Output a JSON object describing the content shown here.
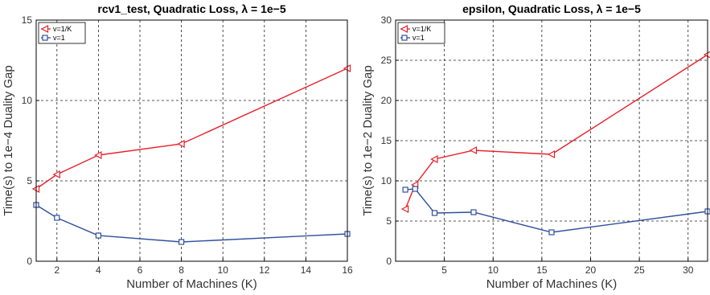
{
  "chart_data": [
    {
      "type": "line",
      "title": "rcv1_test, Quadratic Loss, λ = 1e−5",
      "xlabel": "Number of Machines (K)",
      "ylabel": "Time(s) to 1e−4 Duality Gap",
      "xlim": [
        1,
        16
      ],
      "ylim": [
        0,
        15
      ],
      "xticks": [
        2,
        4,
        6,
        8,
        10,
        12,
        14,
        16
      ],
      "yticks": [
        0,
        5,
        10,
        15
      ],
      "grid": true,
      "legend_position": "top-left",
      "series": [
        {
          "name": "v=1/K",
          "color": "#e8202a",
          "marker": "triangle-left",
          "x": [
            1,
            2,
            4,
            8,
            16
          ],
          "y": [
            4.5,
            5.4,
            6.6,
            7.3,
            12.0
          ]
        },
        {
          "name": "v=1",
          "color": "#2f4f9e",
          "marker": "square",
          "x": [
            1,
            2,
            4,
            8,
            16
          ],
          "y": [
            3.5,
            2.7,
            1.6,
            1.2,
            1.7
          ]
        }
      ]
    },
    {
      "type": "line",
      "title": "epsilon, Quadratic Loss, λ = 1e−5",
      "xlabel": "Number of Machines (K)",
      "ylabel": "Time(s) to 1e−2 Duality Gap",
      "xlim": [
        0,
        32
      ],
      "ylim": [
        0,
        30
      ],
      "xticks": [
        5,
        10,
        15,
        20,
        25,
        30
      ],
      "yticks": [
        0,
        5,
        10,
        15,
        20,
        25,
        30
      ],
      "grid": true,
      "legend_position": "top-left",
      "series": [
        {
          "name": "v=1/K",
          "color": "#e8202a",
          "marker": "triangle-left",
          "x": [
            1,
            2,
            4,
            8,
            16,
            32
          ],
          "y": [
            6.5,
            9.5,
            12.7,
            13.8,
            13.3,
            25.7
          ]
        },
        {
          "name": "v=1",
          "color": "#2f4f9e",
          "marker": "square",
          "x": [
            1,
            2,
            4,
            8,
            16,
            32
          ],
          "y": [
            8.9,
            9.0,
            6.0,
            6.1,
            3.6,
            6.2
          ]
        }
      ]
    }
  ]
}
